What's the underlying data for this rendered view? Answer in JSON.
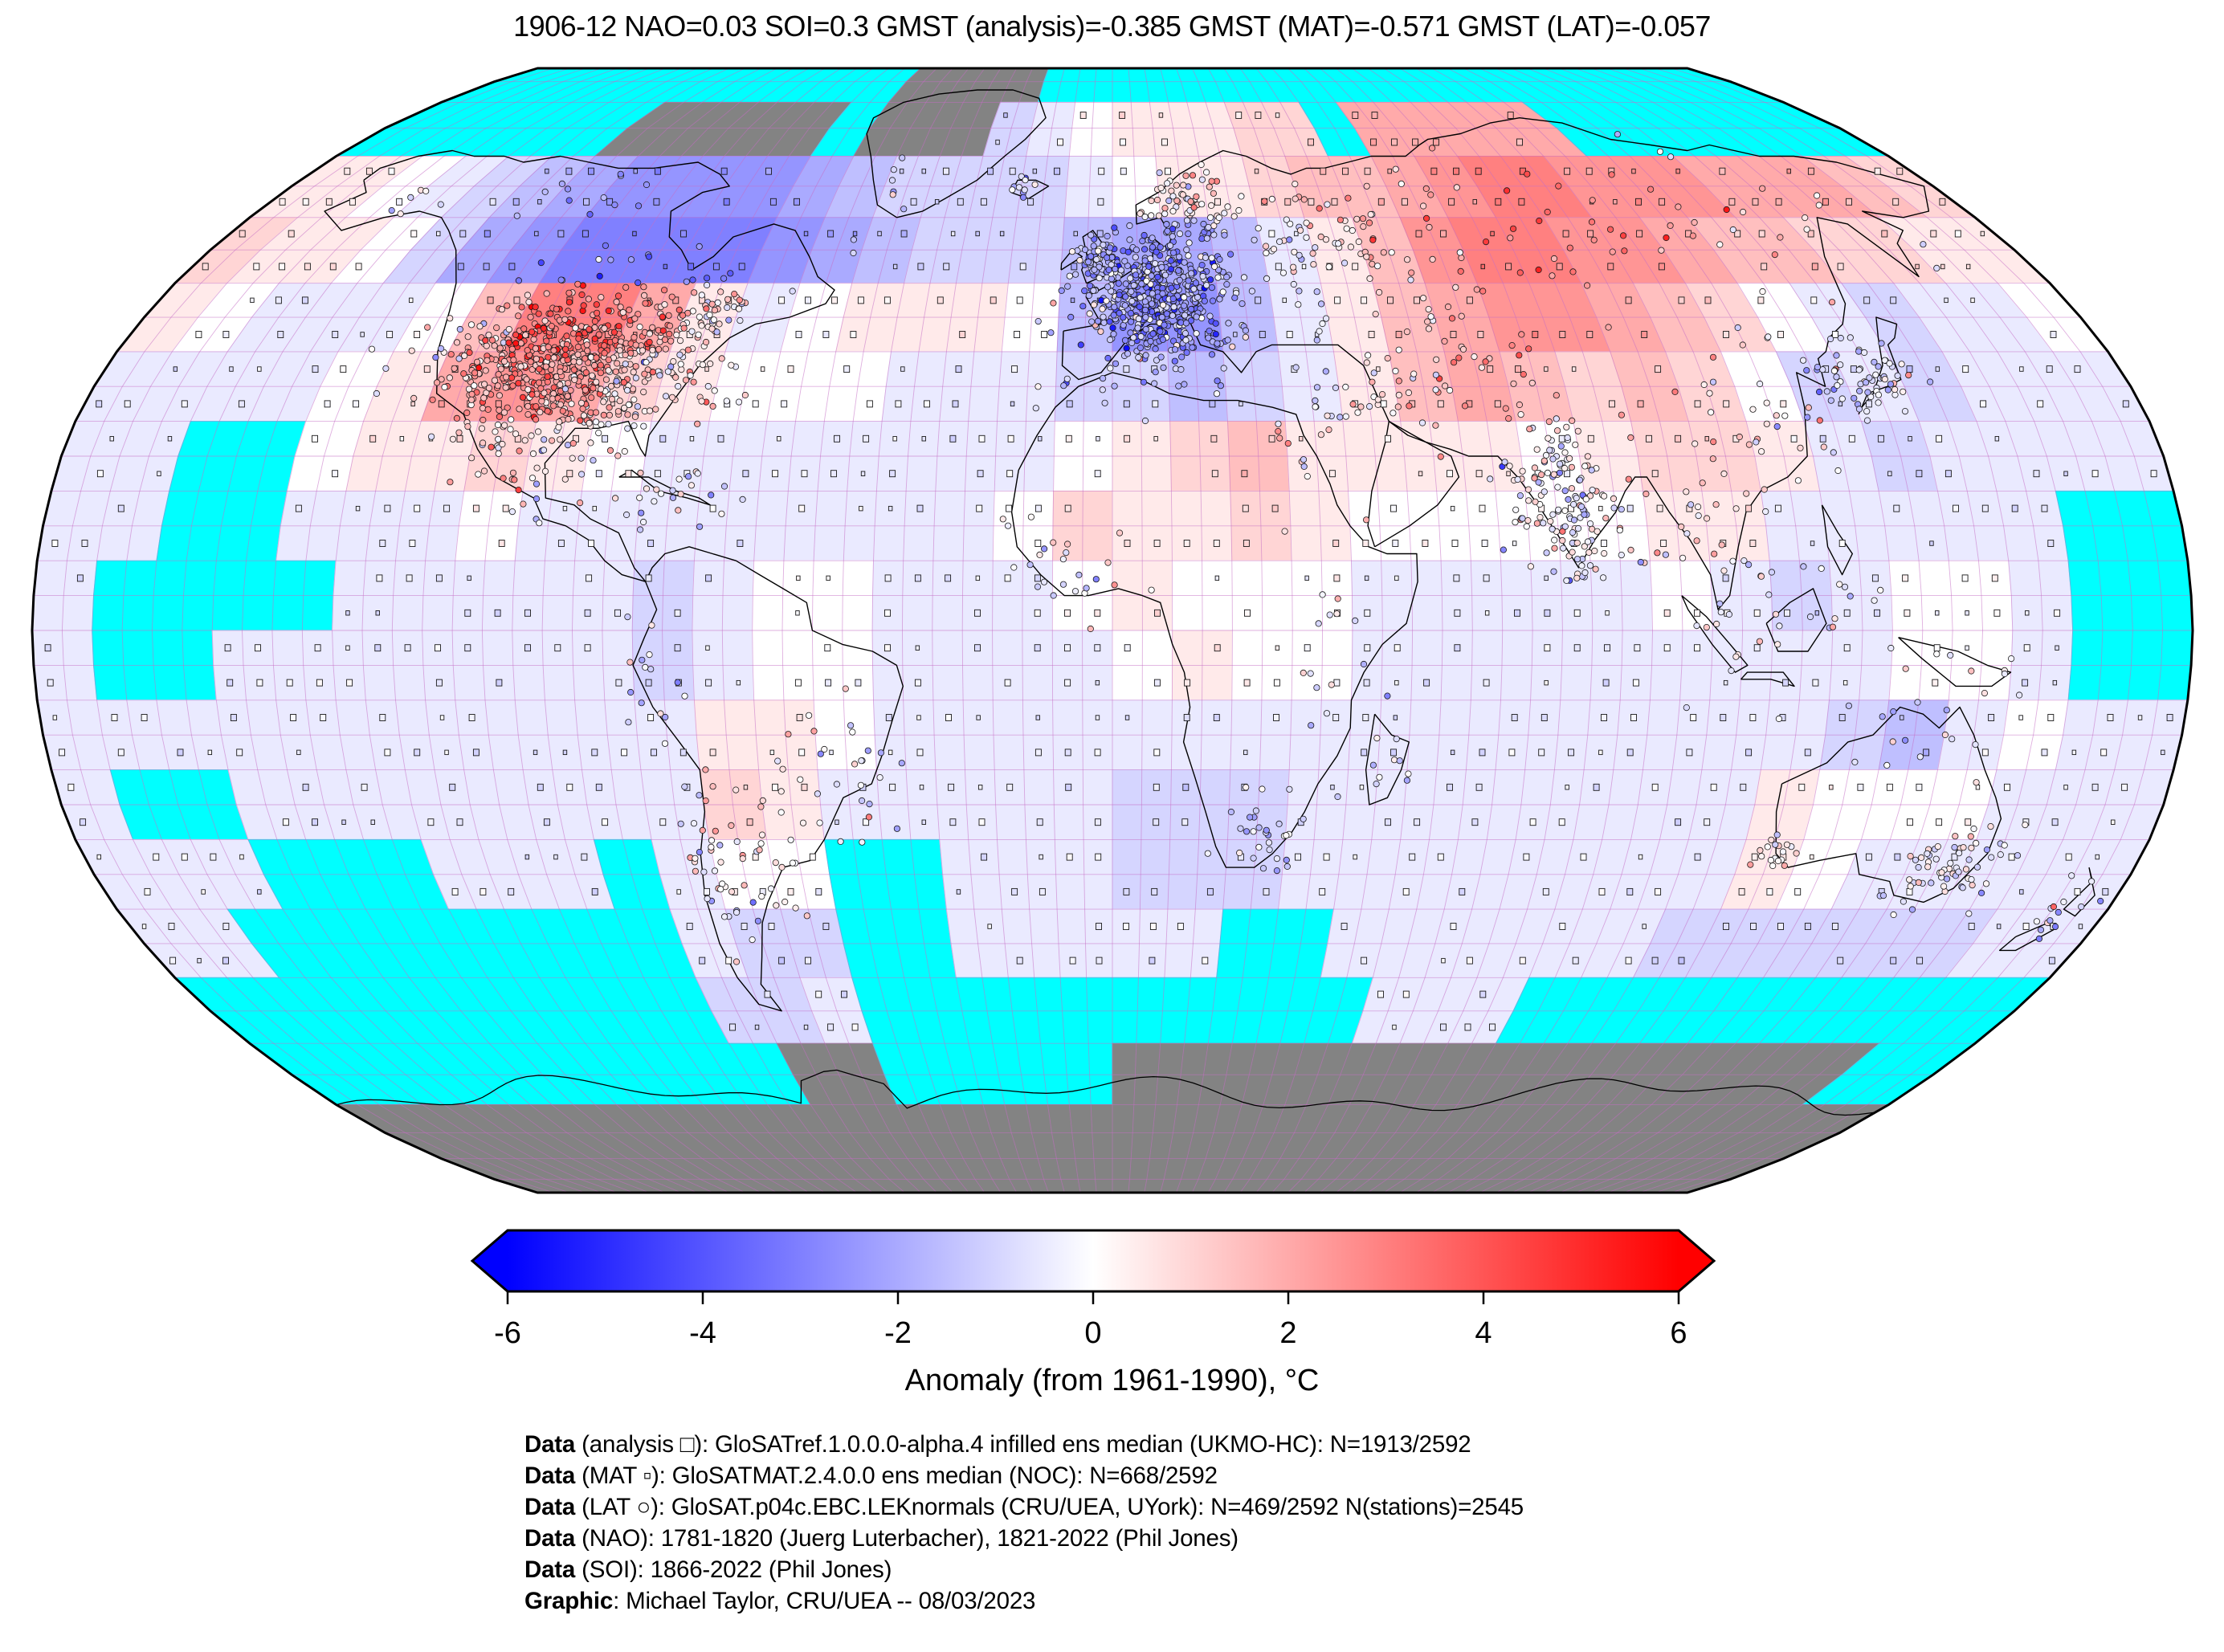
{
  "title": "1906-12 NAO=0.03 SOI=0.3 GMST (analysis)=-0.385 GMST (MAT)=-0.571 GMST (LAT)=-0.057",
  "colorbar": {
    "label": "Anomaly (from 1961-1990), °C",
    "ticks": [
      -6,
      -4,
      -2,
      0,
      2,
      4,
      6
    ],
    "tick_labels": [
      "-6",
      "-4",
      "-2",
      "0",
      "2",
      "4",
      "6"
    ],
    "min": -6,
    "max": 6,
    "colormap": "blue-white-red",
    "left_end_color": "#0000ff",
    "right_end_color": "#ff0000",
    "missing_color": "#00ffff",
    "nodata_color": "#838383"
  },
  "footer": {
    "lines": [
      {
        "bold": "Data",
        "rest": " (analysis □): GloSATref.1.0.0.0-alpha.4 infilled ens median (UKMO-HC): N=1913/2592"
      },
      {
        "bold": "Data",
        "rest": " (MAT ▫): GloSATMAT.2.4.0.0 ens median (NOC): N=668/2592"
      },
      {
        "bold": "Data",
        "rest": " (LAT ○): GloSAT.p04c.EBC.LEKnormals (CRU/UEA, UYork): N=469/2592 N(stations)=2545"
      },
      {
        "bold": "Data",
        "rest": " (NAO): 1781-1820 (Juerg Luterbacher), 1821-2022 (Phil Jones)"
      },
      {
        "bold": "Data",
        "rest": " (SOI): 1866-2022 (Phil Jones)"
      },
      {
        "bold": "Graphic",
        "rest": ": Michael Taylor, CRU/UEA -- 08/03/2023"
      }
    ]
  },
  "chart_data": {
    "type": "heatmap",
    "subtype": "global-anomaly-map",
    "projection": "robinson",
    "period": "1906-12",
    "indices": {
      "NAO": 0.03,
      "SOI": 0.3,
      "GMST_analysis": -0.385,
      "GMST_MAT": -0.571,
      "GMST_LAT": -0.057
    },
    "anomaly_units": "degC vs 1961-1990",
    "colormap_range": [
      -6,
      6
    ],
    "grid_resolution_deg": 10,
    "grid_rows": "lat 90N to 90S in 10 deg bands (top to bottom)",
    "grid_cols": "lon 180W to 180E in 10 deg bands (left to right)",
    "legend_codes": {
      "C": "cyan = missing / sea-ice ocean cell",
      "G": "gray = no-data land / ice sheet"
    },
    "anomaly_grid": [
      [
        "C",
        "C",
        "C",
        "C",
        "C",
        "C",
        "C",
        "C",
        "C",
        "C",
        "C",
        "C",
        "G",
        "G",
        "G",
        "G",
        "C",
        "C",
        "C",
        "C",
        "C",
        "C",
        "C",
        "C",
        "C",
        "C",
        "C",
        "C",
        "C",
        "C",
        "C",
        "C",
        "C",
        "C",
        "C",
        "C"
      ],
      [
        "C",
        "C",
        "C",
        "C",
        "C",
        "C",
        "G",
        "G",
        "G",
        "G",
        "G",
        "C",
        "G",
        "G",
        "G",
        -1,
        -0.5,
        0,
        0.5,
        0.5,
        0.5,
        1,
        1,
        "C",
        2,
        2,
        2,
        2,
        2,
        "C",
        "C",
        "C",
        "C",
        "C",
        "C",
        "C"
      ],
      [
        0.5,
        0.5,
        0,
        -0.5,
        -1,
        -1.5,
        -2,
        -2.5,
        -2.5,
        -2.5,
        -2.5,
        -2,
        -1.5,
        -1,
        -1,
        -1,
        -1,
        -0.5,
        0,
        0.5,
        0.5,
        1,
        1.5,
        1.5,
        2,
        2.5,
        3,
        3,
        2.5,
        2.5,
        2.5,
        2,
        2,
        2,
        1.5,
        1
      ],
      [
        1,
        0.5,
        0.5,
        0,
        -1,
        -2,
        -2.5,
        -3,
        -3,
        -3,
        -3,
        -2.5,
        -2,
        -1.5,
        -1,
        -1,
        -1,
        -1.5,
        -2,
        -2,
        -1.5,
        -0.5,
        0.5,
        1.5,
        2.5,
        3,
        3,
        2.5,
        2.5,
        2,
        1.5,
        1.5,
        1,
        1,
        0.5,
        0.5
      ],
      [
        0.5,
        0,
        -0.5,
        -0.5,
        -0.5,
        0,
        1.5,
        3,
        3,
        2,
        0.5,
        -0.5,
        0,
        0.5,
        0.5,
        0.5,
        0,
        -1.5,
        -2.5,
        -2.5,
        -1.5,
        -0.5,
        0.5,
        1.5,
        2,
        2.5,
        2.5,
        2,
        1.5,
        1,
        0,
        -0.5,
        -1,
        -0.5,
        -0.5,
        0
      ],
      [
        -0.5,
        -0.5,
        -0.5,
        -0.5,
        0,
        0.5,
        2,
        2.5,
        2,
        1,
        0.5,
        0,
        0,
        0,
        -0.5,
        -0.5,
        -0.5,
        -1,
        -1,
        -1.5,
        -1,
        -0.5,
        0.5,
        1.5,
        2,
        1.5,
        1,
        1.5,
        1,
        0,
        -1,
        -0.5,
        -1,
        -0.5,
        -0.5,
        -0.5
      ],
      [
        -0.5,
        -0.5,
        "C",
        "C",
        0,
        0.5,
        0.5,
        1,
        0.5,
        0,
        -0.5,
        -0.5,
        -0.5,
        -0.5,
        -0.5,
        -0.5,
        -0.5,
        0,
        0.5,
        1,
        1.5,
        0.5,
        0.5,
        0.5,
        0.5,
        0,
        0.5,
        1,
        1,
        0.5,
        -0.5,
        -1,
        -0.5,
        -0.5,
        -0.5,
        -0.5
      ],
      [
        -0.5,
        -0.5,
        "C",
        "C",
        -0.5,
        -0.5,
        -0.5,
        0,
        -0.5,
        -0.5,
        -0.5,
        -0.5,
        -0.5,
        -0.5,
        -0.5,
        -0.5,
        0,
        1,
        0.5,
        0.5,
        1,
        0.5,
        0,
        0,
        0,
        0,
        0,
        0.5,
        0.5,
        -0.5,
        -0.5,
        -0.5,
        -0.5,
        -0.5,
        "C",
        "C"
      ],
      [
        -0.5,
        "C",
        "C",
        "C",
        "C",
        -0.5,
        -0.5,
        -0.5,
        -0.5,
        -0.5,
        -1,
        -0.5,
        0,
        0,
        -0.5,
        -0.5,
        -0.5,
        0,
        0.5,
        0,
        0,
        0,
        -0.5,
        -0.5,
        -0.5,
        -0.5,
        -0.5,
        0,
        -0.5,
        -1,
        -0.5,
        0,
        0,
        -0.5,
        "C",
        "C"
      ],
      [
        -0.5,
        "C",
        "C",
        -0.5,
        -0.5,
        -0.5,
        -0.5,
        -0.5,
        -0.5,
        -0.5,
        -1,
        -0.5,
        0,
        0,
        -0.5,
        -0.5,
        -0.5,
        -0.5,
        0,
        0.5,
        0,
        0,
        -0.5,
        -0.5,
        -0.5,
        -0.5,
        -0.5,
        -0.5,
        -0.5,
        -0.5,
        -0.5,
        0,
        0,
        -0.5,
        "C",
        "C"
      ],
      [
        -0.5,
        -0.5,
        -0.5,
        -0.5,
        -0.5,
        -0.5,
        -0.5,
        -0.5,
        -0.5,
        -0.5,
        -0.5,
        0.5,
        0.5,
        0,
        -0.5,
        -0.5,
        -0.5,
        -0.5,
        -0.5,
        -0.5,
        -0.5,
        -0.5,
        -0.5,
        -0.5,
        -0.5,
        -0.5,
        -0.5,
        -0.5,
        -0.5,
        -0.5,
        -1,
        -1.5,
        -0.5,
        0,
        -0.5,
        -0.5
      ],
      [
        -0.5,
        "C",
        "C",
        -0.5,
        -0.5,
        -0.5,
        -0.5,
        -0.5,
        -0.5,
        -0.5,
        -0.5,
        1,
        0.5,
        -0.5,
        -0.5,
        -0.5,
        -0.5,
        -0.5,
        -1,
        -1,
        -1,
        -0.5,
        -0.5,
        -0.5,
        -0.5,
        -0.5,
        -0.5,
        -0.5,
        -0.5,
        0.5,
        0,
        0,
        0,
        -0.5,
        -0.5,
        -0.5
      ],
      [
        -0.5,
        -0.5,
        -0.5,
        "C",
        "C",
        "C",
        -0.5,
        -0.5,
        -0.5,
        "C",
        -0.5,
        0,
        0,
        "C",
        "C",
        -0.5,
        -0.5,
        -0.5,
        -1,
        -1,
        -1,
        -0.5,
        -0.5,
        -0.5,
        -0.5,
        -0.5,
        -0.5,
        -0.5,
        -0.5,
        0.5,
        0,
        -0.5,
        -0.5,
        -0.5,
        -0.5,
        -0.5
      ],
      [
        -0.5,
        -0.5,
        "C",
        "C",
        "C",
        "C",
        "C",
        "C",
        "C",
        "C",
        -0.5,
        -1,
        -1,
        "C",
        "C",
        -0.5,
        -0.5,
        -0.5,
        -0.5,
        -0.5,
        "C",
        "C",
        -0.5,
        -0.5,
        -0.5,
        -0.5,
        -0.5,
        -0.5,
        -1,
        -1,
        -1,
        -1,
        -1,
        -1,
        -0.5,
        -0.5
      ],
      [
        "C",
        "C",
        "C",
        "C",
        "C",
        "C",
        "C",
        "C",
        "C",
        "C",
        -1,
        -1,
        -0.5,
        "C",
        "C",
        "C",
        "C",
        "C",
        "C",
        "C",
        "C",
        "C",
        "C",
        -0.5,
        -0.5,
        -0.5,
        "C",
        "C",
        "C",
        "C",
        "C",
        "C",
        "C",
        "C",
        "C",
        "C"
      ],
      [
        "C",
        "C",
        "C",
        "C",
        "C",
        "C",
        "C",
        "C",
        "C",
        "C",
        "C",
        "G",
        "G",
        "C",
        "C",
        "C",
        "C",
        "C",
        "G",
        "G",
        "G",
        "G",
        "G",
        "G",
        "G",
        "G",
        "G",
        "G",
        "G",
        "G",
        "G",
        "G",
        "G",
        "G",
        "C",
        "C"
      ],
      [
        "G",
        "G",
        "G",
        "G",
        "G",
        "G",
        "G",
        "G",
        "G",
        "G",
        "G",
        "G",
        "G",
        "G",
        "G",
        "G",
        "G",
        "G",
        "G",
        "G",
        "G",
        "G",
        "G",
        "G",
        "G",
        "G",
        "G",
        "G",
        "G",
        "G",
        "G",
        "G",
        "G",
        "G",
        "G",
        "G"
      ],
      [
        "G",
        "G",
        "G",
        "G",
        "G",
        "G",
        "G",
        "G",
        "G",
        "G",
        "G",
        "G",
        "G",
        "G",
        "G",
        "G",
        "G",
        "G",
        "G",
        "G",
        "G",
        "G",
        "G",
        "G",
        "G",
        "G",
        "G",
        "G",
        "G",
        "G",
        "G",
        "G",
        "G",
        "G",
        "G",
        "G"
      ]
    ],
    "marker_types": [
      {
        "symbol": "square-medium",
        "meaning": "analysis grid-cell marker",
        "count": "1913/2592"
      },
      {
        "symbol": "square-small",
        "meaning": "MAT grid-cell marker",
        "count": "668/2592"
      },
      {
        "symbol": "circle",
        "meaning": "LAT land station",
        "count": "469/2592 cells, 2545 stations"
      }
    ],
    "station_clusters": [
      {
        "name": "usa",
        "lon": -97,
        "lat": 38,
        "slon": 11,
        "slat": 5.5,
        "n": 780
      },
      {
        "name": "canada-se",
        "lon": -75,
        "lat": 46,
        "slon": 4,
        "slat": 2,
        "n": 40
      },
      {
        "name": "canada-nw",
        "lon": -113,
        "lat": 62,
        "slon": 7,
        "slat": 3,
        "n": 12
      },
      {
        "name": "alaska",
        "lon": -150,
        "lat": 62,
        "slon": 4,
        "slat": 2,
        "n": 6
      },
      {
        "name": "mexico",
        "lon": -100,
        "lat": 21,
        "slon": 4,
        "slat": 3,
        "n": 20
      },
      {
        "name": "caribbean",
        "lon": -72,
        "lat": 19,
        "slon": 6,
        "slat": 3,
        "n": 25
      },
      {
        "name": "europe",
        "lon": 8,
        "lat": 48,
        "slon": 7,
        "slat": 4.5,
        "n": 560
      },
      {
        "name": "uk",
        "lon": -2,
        "lat": 53,
        "slon": 2.5,
        "slat": 2,
        "n": 60
      },
      {
        "name": "scandinavia",
        "lon": 16,
        "lat": 61,
        "slon": 5,
        "slat": 4,
        "n": 90
      },
      {
        "name": "iceland",
        "lon": -19,
        "lat": 65,
        "slon": 2,
        "slat": 1,
        "n": 10
      },
      {
        "name": "greenland-coast",
        "lon": -50,
        "lat": 64,
        "slon": 3,
        "slat": 4,
        "n": 8
      },
      {
        "name": "west-russia",
        "lon": 42,
        "lat": 56,
        "slon": 10,
        "slat": 5,
        "n": 80
      },
      {
        "name": "siberia",
        "lon": 95,
        "lat": 58,
        "slon": 28,
        "slat": 6,
        "n": 60
      },
      {
        "name": "central-asia",
        "lon": 60,
        "lat": 42,
        "slon": 10,
        "slat": 5,
        "n": 40
      },
      {
        "name": "mideast",
        "lon": 44,
        "lat": 33,
        "slon": 7,
        "slat": 5,
        "n": 25
      },
      {
        "name": "iran",
        "lon": 60,
        "lat": 35,
        "slon": 8,
        "slat": 5,
        "n": 20
      },
      {
        "name": "india",
        "lon": 77,
        "lat": 20,
        "slon": 5.5,
        "slat": 5.5,
        "n": 140
      },
      {
        "name": "s-india",
        "lon": 78,
        "lat": 10,
        "slon": 2,
        "slat": 3,
        "n": 20
      },
      {
        "name": "burma-thailand",
        "lon": 100,
        "lat": 15,
        "slon": 4,
        "slat": 5,
        "n": 25
      },
      {
        "name": "east-china",
        "lon": 115,
        "lat": 32,
        "slon": 7,
        "slat": 6,
        "n": 35
      },
      {
        "name": "japan",
        "lon": 135,
        "lat": 36,
        "slon": 4,
        "slat": 3,
        "n": 55
      },
      {
        "name": "korea",
        "lon": 127,
        "lat": 37,
        "slon": 2,
        "slat": 2,
        "n": 10
      },
      {
        "name": "indonesia-philippines",
        "lon": 115,
        "lat": 2,
        "slon": 10,
        "slat": 6,
        "n": 35
      },
      {
        "name": "new-guinea",
        "lon": 145,
        "lat": -8,
        "slon": 5,
        "slat": 3,
        "n": 10
      },
      {
        "name": "australia-se",
        "lon": 148,
        "lat": -34,
        "slon": 4,
        "slat": 3,
        "n": 65
      },
      {
        "name": "australia-sw",
        "lon": 116,
        "lat": -32,
        "slon": 2,
        "slat": 1.5,
        "n": 18
      },
      {
        "name": "australia-n",
        "lon": 135,
        "lat": -17,
        "slon": 6,
        "slat": 4,
        "n": 10
      },
      {
        "name": "new-zealand",
        "lon": 172,
        "lat": -41,
        "slon": 3,
        "slat": 3,
        "n": 14
      },
      {
        "name": "argentina",
        "lon": -62,
        "lat": -33,
        "slon": 6,
        "slat": 5,
        "n": 45
      },
      {
        "name": "chile",
        "lon": -71,
        "lat": -35,
        "slon": 2,
        "slat": 6,
        "n": 20
      },
      {
        "name": "brazil",
        "lon": -45,
        "lat": -20,
        "slon": 5,
        "slat": 5,
        "n": 25
      },
      {
        "name": "peru-ecuador",
        "lon": -78,
        "lat": -8,
        "slon": 3,
        "slat": 5,
        "n": 15
      },
      {
        "name": "west-africa",
        "lon": -8,
        "lat": 9,
        "slon": 7,
        "slat": 4,
        "n": 25
      },
      {
        "name": "north-africa",
        "lon": 3,
        "lat": 34,
        "slon": 8,
        "slat": 3,
        "n": 15
      },
      {
        "name": "nile",
        "lon": 32,
        "lat": 27,
        "slon": 4,
        "slat": 6,
        "n": 10
      },
      {
        "name": "east-africa",
        "lon": 36,
        "lat": -3,
        "slon": 5,
        "slat": 8,
        "n": 18
      },
      {
        "name": "south-africa",
        "lon": 26,
        "lat": -29,
        "slon": 4,
        "slat": 3,
        "n": 30
      },
      {
        "name": "madagascar",
        "lon": 47,
        "lat": -19,
        "slon": 2,
        "slat": 3,
        "n": 8
      }
    ]
  }
}
